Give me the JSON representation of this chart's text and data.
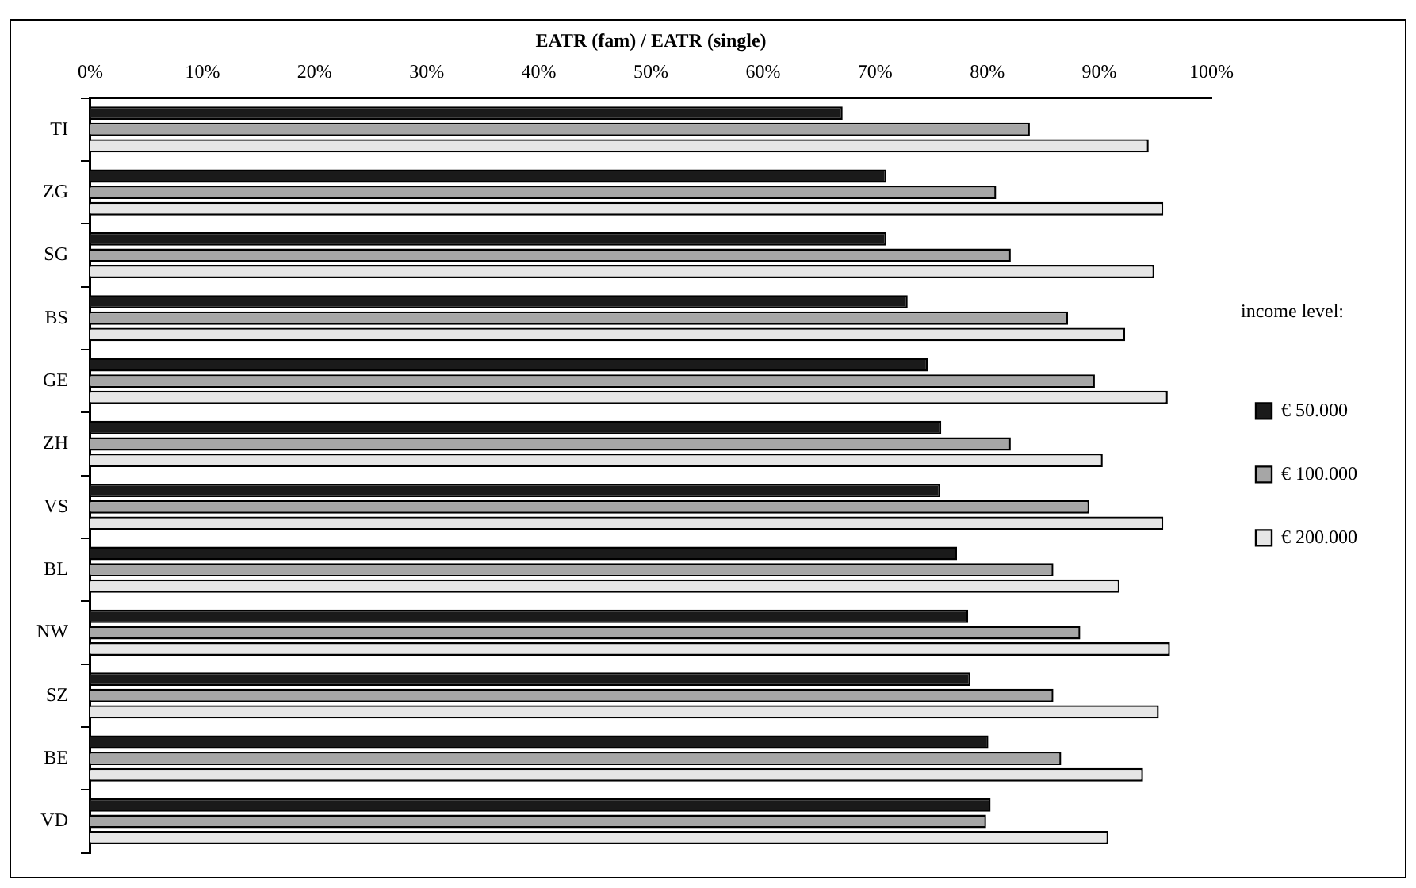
{
  "chart_data": {
    "type": "bar",
    "orientation": "horizontal",
    "xlabel": "EATR (fam) / EATR (single)",
    "legend_title": "income level:",
    "legend": "right",
    "grid": false,
    "categories": [
      "TI",
      "ZG",
      "SG",
      "BS",
      "GE",
      "ZH",
      "VS",
      "BL",
      "NW",
      "SZ",
      "BE",
      "VD"
    ],
    "xlim": [
      0,
      100
    ],
    "xticks": [
      {
        "value": 0,
        "label": "0%"
      },
      {
        "value": 10,
        "label": "10%"
      },
      {
        "value": 20,
        "label": "20%"
      },
      {
        "value": 30,
        "label": "30%"
      },
      {
        "value": 40,
        "label": "40%"
      },
      {
        "value": 50,
        "label": "50%"
      },
      {
        "value": 60,
        "label": "60%"
      },
      {
        "value": 70,
        "label": "70%"
      },
      {
        "value": 80,
        "label": "80%"
      },
      {
        "value": 90,
        "label": "90%"
      },
      {
        "value": 100,
        "label": "100%"
      }
    ],
    "series": [
      {
        "name": "€ 50.000",
        "color": "#1a1a1a",
        "values": [
          67.1,
          71.0,
          71.0,
          72.9,
          74.7,
          75.9,
          75.8,
          77.3,
          78.3,
          78.5,
          80.1,
          80.3
        ]
      },
      {
        "name": "€ 100.000",
        "color": "#a6a6a6",
        "values": [
          83.8,
          80.8,
          82.1,
          87.2,
          89.6,
          82.1,
          89.1,
          85.9,
          88.3,
          85.9,
          86.6,
          79.9
        ]
      },
      {
        "name": "€ 200.000",
        "color": "#e6e6e6",
        "values": [
          94.4,
          95.7,
          94.9,
          92.3,
          96.1,
          90.3,
          95.7,
          91.8,
          96.3,
          95.3,
          93.9,
          90.8
        ]
      }
    ]
  }
}
